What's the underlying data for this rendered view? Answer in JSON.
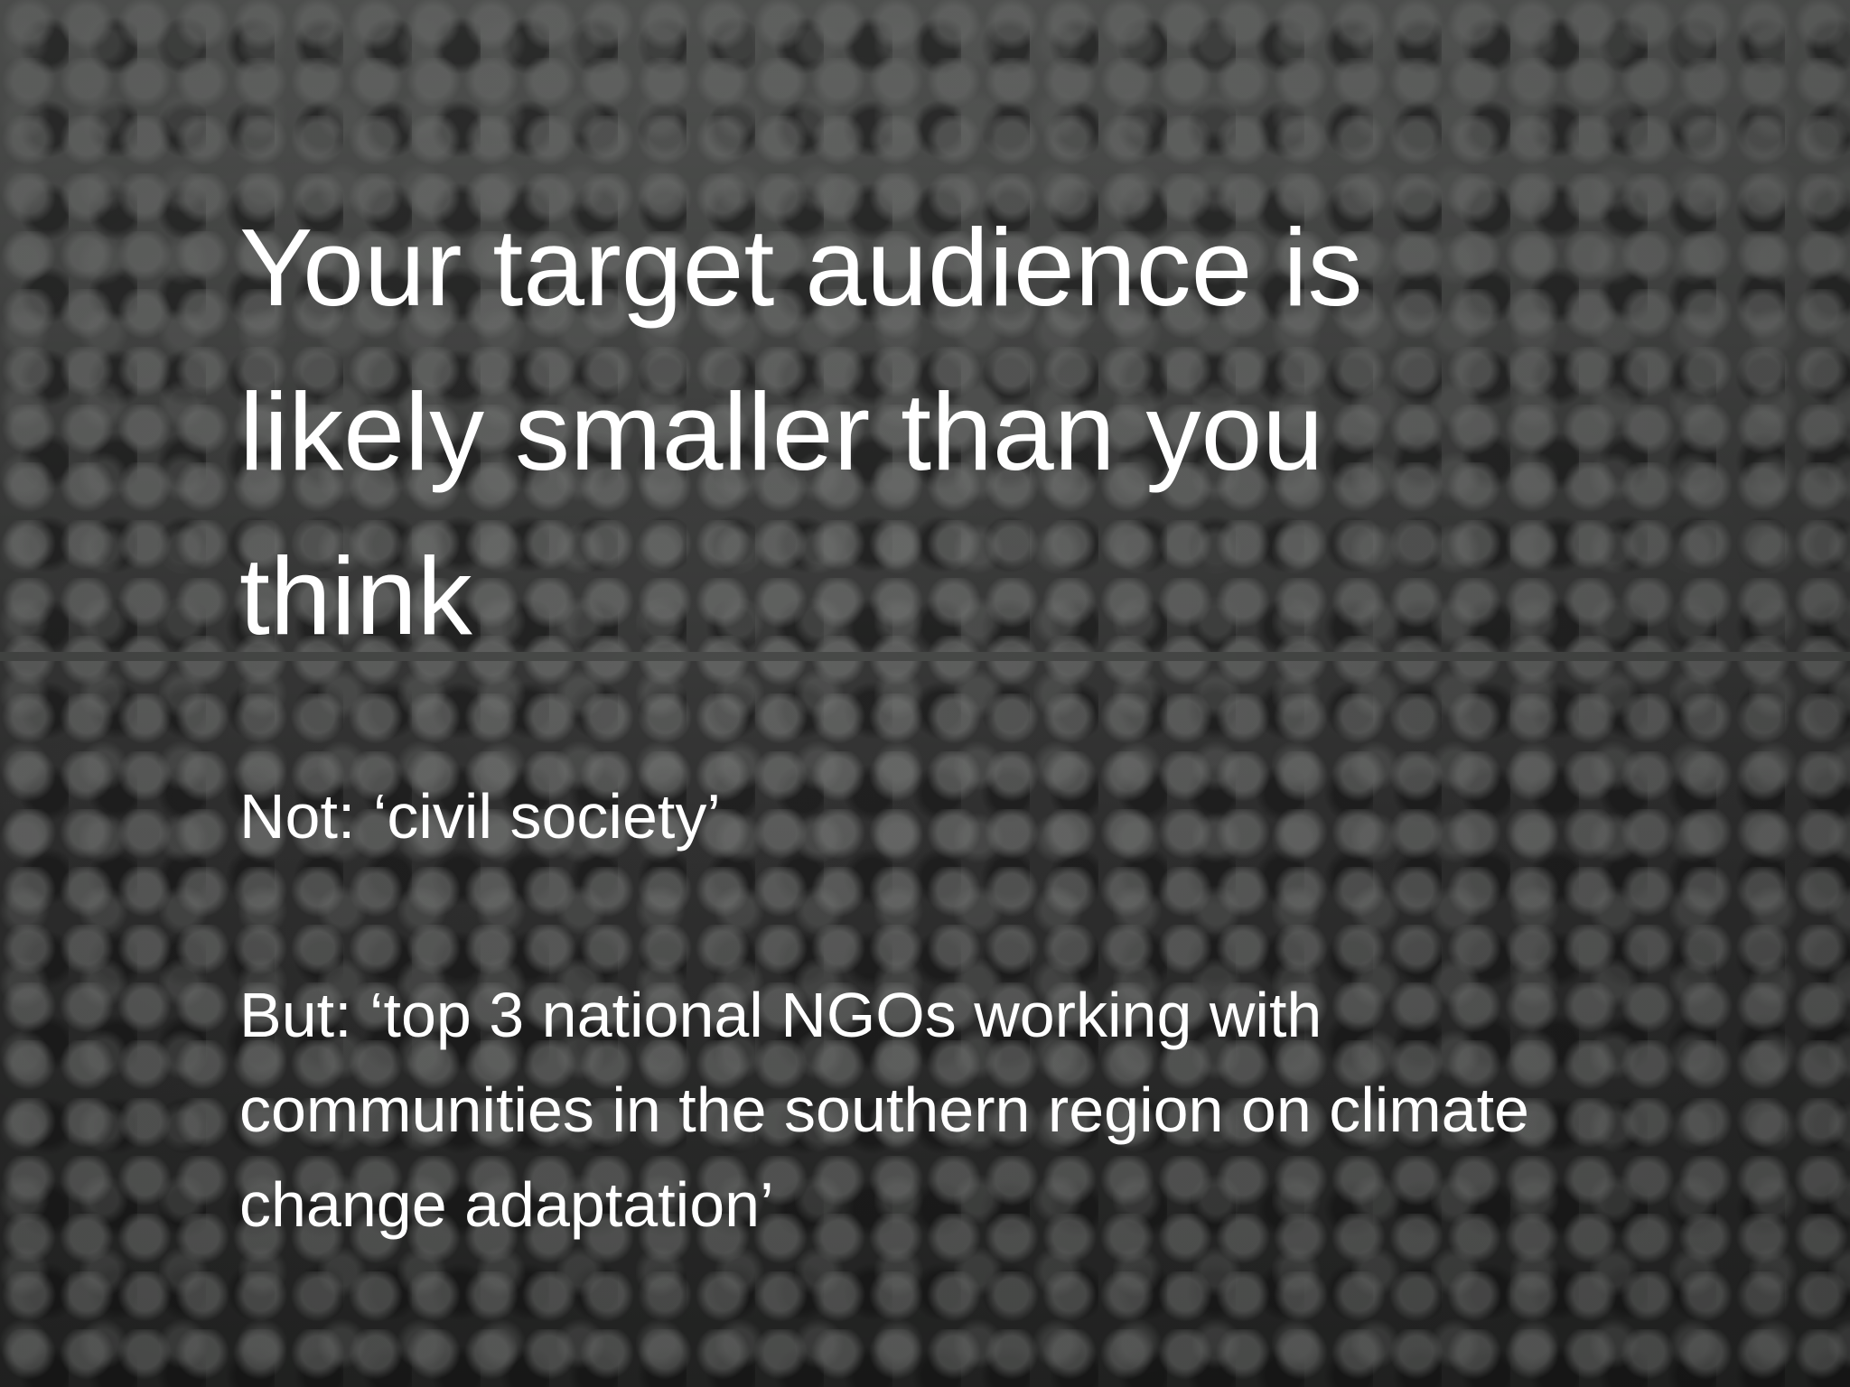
{
  "slide": {
    "title": "Your target audience is likely smaller than you think",
    "body": [
      "Not: ‘civil society’",
      "But: ‘top 3 national NGOs working with communities in the southern region on climate change adaptation’"
    ]
  }
}
